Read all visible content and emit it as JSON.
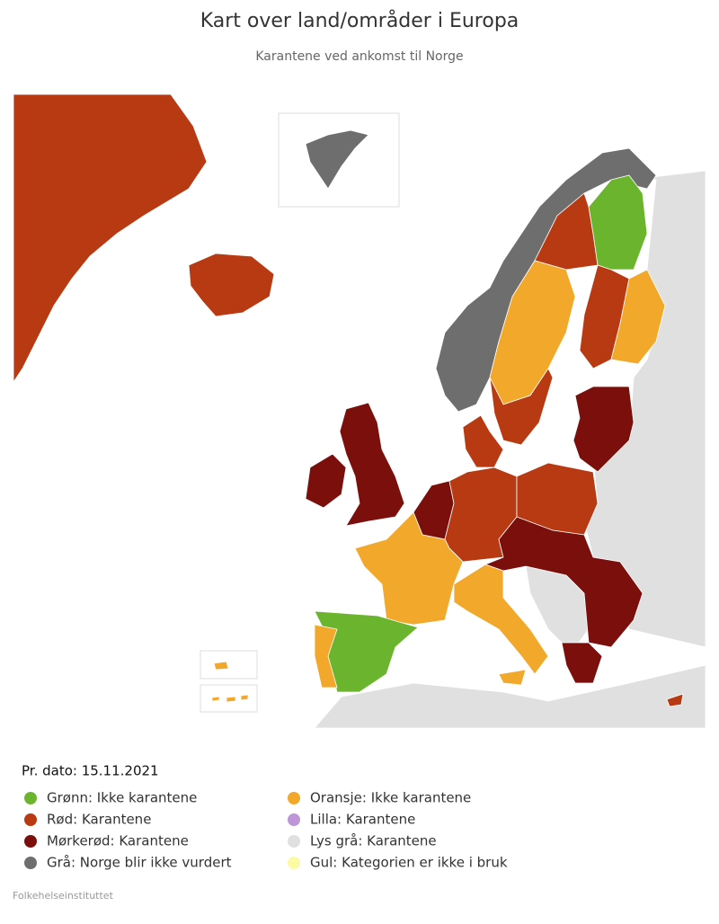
{
  "header": {
    "title": "Kart over land/områder i Europa",
    "subtitle": "Karantene ved ankomst til Norge"
  },
  "legend": {
    "date": "Pr. dato: 15.11.2021",
    "items": [
      {
        "label": "Grønn: Ikke karantene",
        "color": "#6bb52e"
      },
      {
        "label": "Rød: Karantene",
        "color": "#b83a12"
      },
      {
        "label": "Mørkerød: Karantene",
        "color": "#7b0f0b"
      },
      {
        "label": "Grå: Norge blir ikke vurdert",
        "color": "#6e6e6e"
      },
      {
        "label": "Oransje: Ikke karantene",
        "color": "#f1a82b"
      },
      {
        "label": "Lilla: Karantene",
        "color": "#be96d8"
      },
      {
        "label": "Lys grå: Karantene",
        "color": "#e0e0e0"
      },
      {
        "label": "Gul: Kategorien er ikke i bruk",
        "color": "#fbfba3"
      }
    ]
  },
  "footer": {
    "source": "Folkehelseinstituttet"
  }
}
